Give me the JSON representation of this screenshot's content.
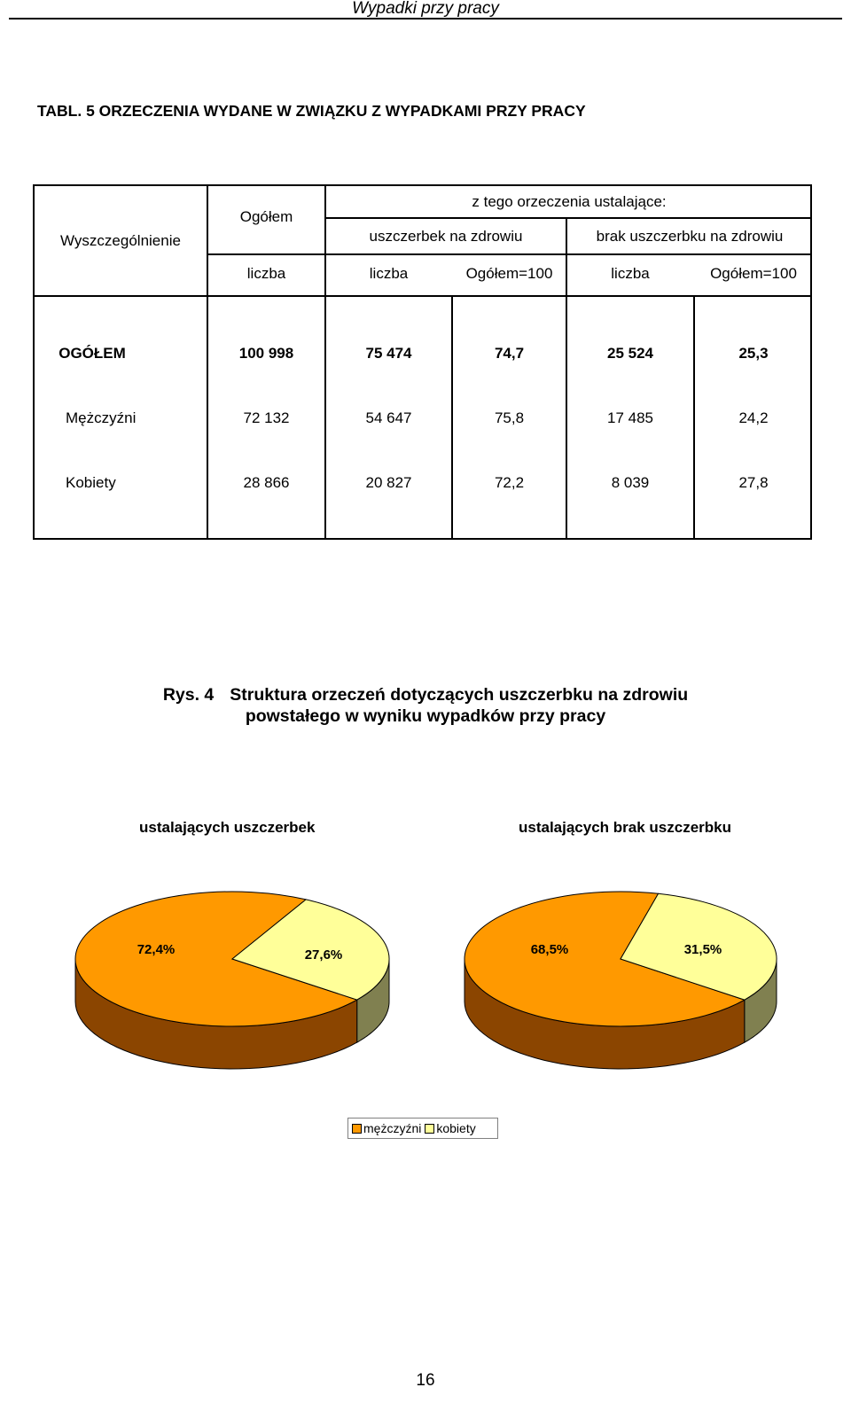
{
  "header": {
    "title": "Wypadki przy pracy"
  },
  "table_title": "TABL. 5   ORZECZENIA WYDANE  W  ZWIĄZKU Z WYPADKAMI PRZY PRACY",
  "table": {
    "col_spec": "Wyszczególnienie",
    "col_total": "Ogółem",
    "group_header": "z tego orzeczenia ustalające:",
    "sub_harm": "uszczerbek na zdrowiu",
    "sub_noharm": "brak uszczerbku na zdrowiu",
    "units": [
      "liczba",
      "liczba",
      "Ogółem=100",
      "liczba",
      "Ogółem=100"
    ],
    "rows": [
      {
        "label": "OGÓŁEM",
        "cells": [
          "100 998",
          "75 474",
          "74,7",
          "25 524",
          "25,3"
        ]
      },
      {
        "label": "Mężczyźni",
        "cells": [
          "72 132",
          "54 647",
          "75,8",
          "17 485",
          "24,2"
        ]
      },
      {
        "label": "Kobiety",
        "cells": [
          "28 866",
          "20 827",
          "72,2",
          "8 039",
          "27,8"
        ]
      }
    ]
  },
  "figure": {
    "label": "Rys. 4",
    "title_line1": "Struktura orzeczeń dotyczących uszczerbku na zdrowiu",
    "title_line2": "powstałego w wyniku wypadków przy pracy"
  },
  "colors": {
    "men": "#FF9900",
    "men_side": "#8B4500",
    "women": "#FFFF99",
    "women_side": "#808050"
  },
  "chart_data": [
    {
      "type": "pie",
      "title": "ustalających uszczerbek",
      "categories": [
        "mężczyźni",
        "kobiety"
      ],
      "values": [
        72.4,
        27.6
      ],
      "labels": [
        "72,4%",
        "27,6%"
      ],
      "legend": "bottom-center"
    },
    {
      "type": "pie",
      "title": "ustalających brak uszczerbku",
      "categories": [
        "mężczyźni",
        "kobiety"
      ],
      "values": [
        68.5,
        31.5
      ],
      "labels": [
        "68,5%",
        "31,5%"
      ],
      "legend": "bottom-center"
    }
  ],
  "legend": {
    "men": "mężczyźni",
    "women": "kobiety"
  },
  "page_number": "16"
}
